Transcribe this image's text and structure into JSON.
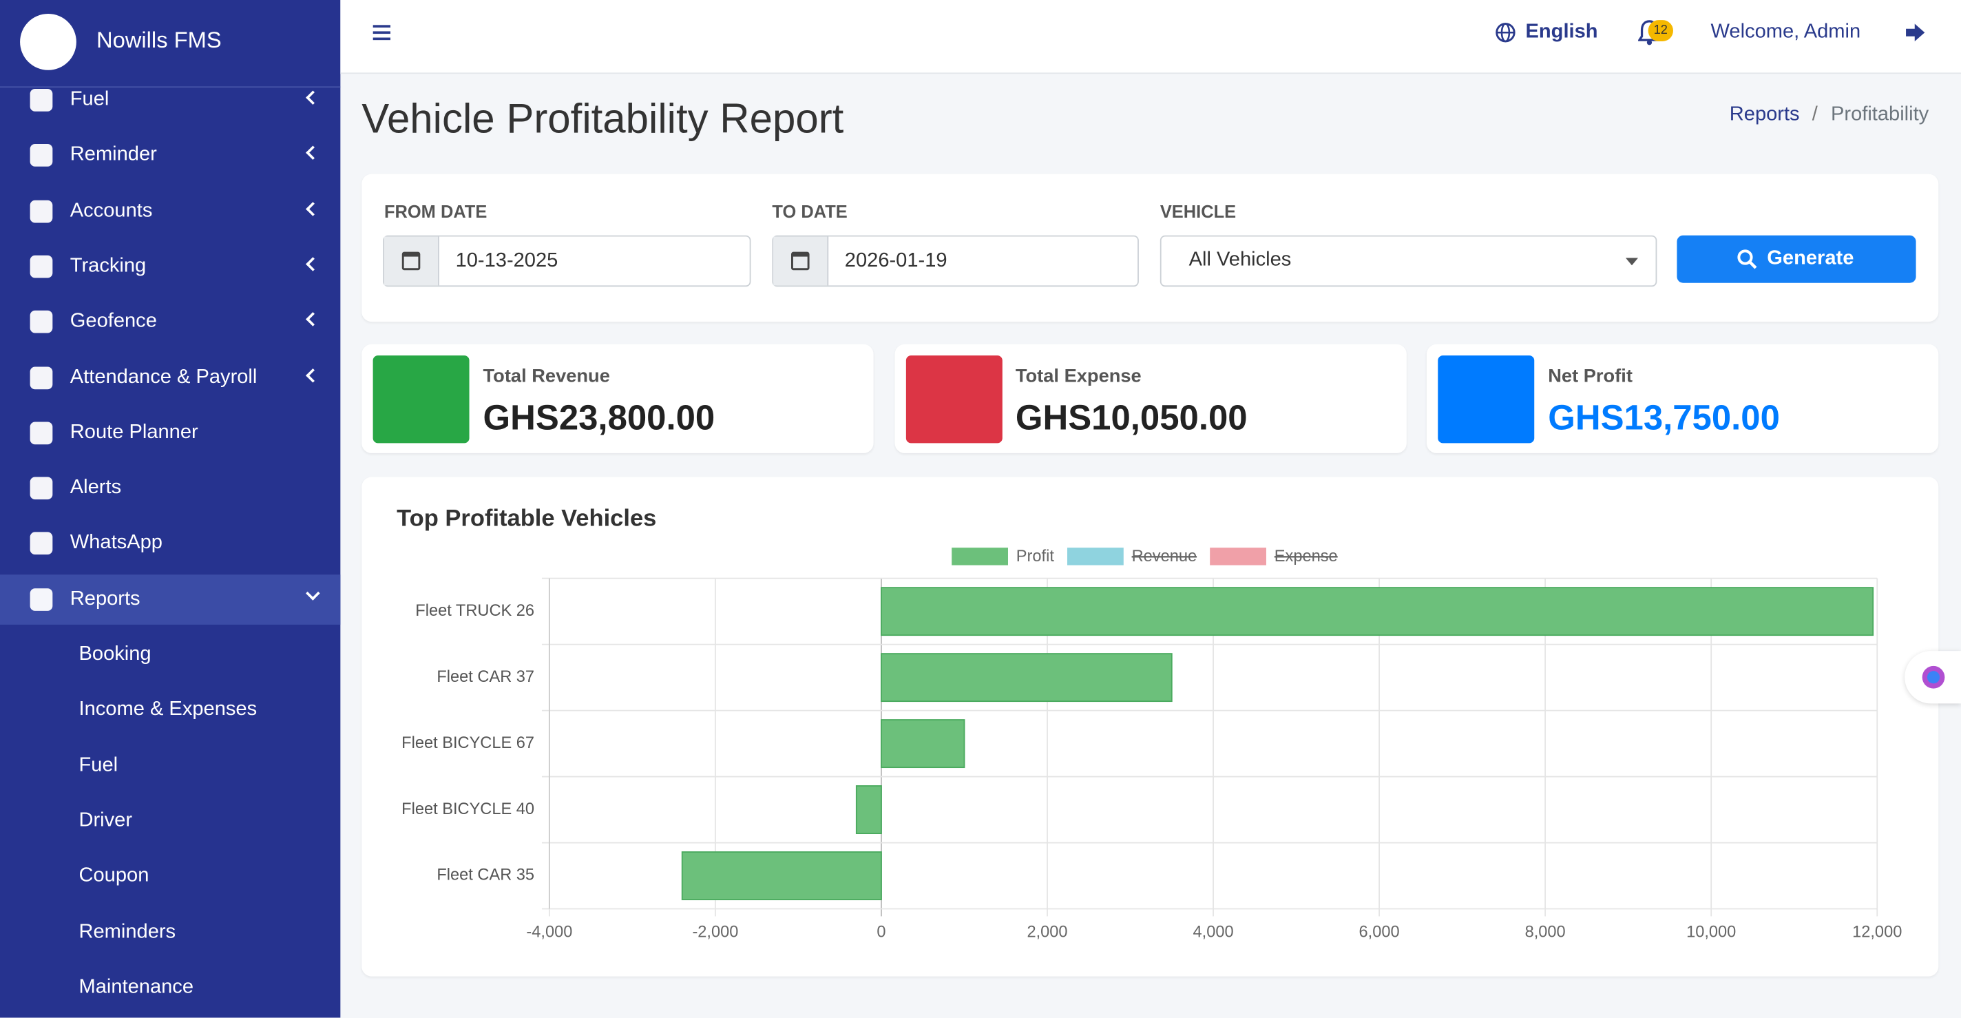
{
  "sidebar": {
    "brand": "Nowills FMS",
    "items": [
      {
        "label": "Fuel",
        "expandable": true
      },
      {
        "label": "Reminder",
        "expandable": true
      },
      {
        "label": "Accounts",
        "expandable": true
      },
      {
        "label": "Tracking",
        "expandable": true
      },
      {
        "label": "Geofence",
        "expandable": true
      },
      {
        "label": "Attendance & Payroll",
        "expandable": true
      },
      {
        "label": "Route Planner",
        "expandable": false
      },
      {
        "label": "Alerts",
        "expandable": false
      },
      {
        "label": "WhatsApp",
        "expandable": false
      },
      {
        "label": "Reports",
        "expandable": true,
        "active": true
      }
    ],
    "subitems": [
      "Booking",
      "Income & Expenses",
      "Fuel",
      "Driver",
      "Coupon",
      "Reminders",
      "Maintenance"
    ]
  },
  "header": {
    "language": "English",
    "notifications": 12,
    "welcome": "Welcome, Admin"
  },
  "page": {
    "title": "Vehicle Profitability Report",
    "breadcrumb": [
      "Reports",
      "Profitability"
    ],
    "separator": "/"
  },
  "filters": {
    "from_label": "FROM DATE",
    "from_value": "10-13-2025",
    "to_label": "TO DATE",
    "to_value": "2026-01-19",
    "vehicle_label": "VEHICLE",
    "vehicle_value": "All Vehicles",
    "button": "Generate"
  },
  "cards": [
    {
      "label": "Total Revenue",
      "value": "GHS23,800.00",
      "color": "#28a745"
    },
    {
      "label": "Total Expense",
      "value": "GHS10,050.00",
      "color": "#dc3545"
    },
    {
      "label": "Net Profit",
      "value": "GHS13,750.00",
      "color": "#007bff"
    }
  ],
  "chart_data": {
    "type": "bar",
    "orientation": "horizontal",
    "title": "Top Profitable Vehicles",
    "categories": [
      "Fleet TRUCK 26",
      "Fleet CAR 37",
      "Fleet BICYCLE 67",
      "Fleet BICYCLE 40",
      "Fleet CAR 35"
    ],
    "series": [
      {
        "name": "Profit",
        "color": "#6cc07b",
        "values": [
          11950,
          3500,
          1000,
          -300,
          -2400
        ]
      }
    ],
    "legend_items": [
      {
        "name": "Profit",
        "color": "#6cc07b",
        "hidden": false
      },
      {
        "name": "Revenue",
        "color": "#8fd3df",
        "hidden": true
      },
      {
        "name": "Expense",
        "color": "#f0a0a8",
        "hidden": true
      }
    ],
    "xlim": [
      -4000,
      12000
    ],
    "xticks": [
      {
        "value": -4000,
        "label": "-4,000"
      },
      {
        "value": -2000,
        "label": "-2,000"
      },
      0,
      {
        "value": 2000,
        "label": "2,000"
      },
      {
        "value": 4000,
        "label": "4,000"
      },
      {
        "value": 6000,
        "label": "6,000"
      },
      {
        "value": 8000,
        "label": "8,000"
      },
      {
        "value": 10000,
        "label": "10,000"
      },
      {
        "value": 12000,
        "label": "12,000"
      }
    ],
    "grid": true
  }
}
